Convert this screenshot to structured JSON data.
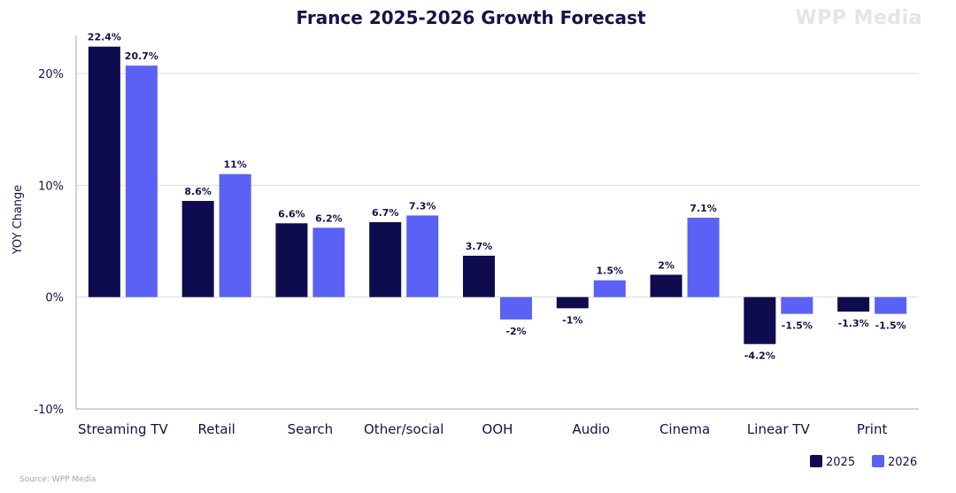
{
  "brand": {
    "watermark": "WPP Media"
  },
  "source": "Source: WPP Media",
  "colors": {
    "series2025": "#0f0b4f",
    "series2026": "#5a61f5",
    "grid": "#dcdcdc",
    "axis": "#a8a8a8",
    "text": "#14134a"
  },
  "chart_data": {
    "type": "bar",
    "title": "France 2025-2026 Growth Forecast",
    "xlabel": "",
    "ylabel": "YOY Change",
    "ylim": [
      -10,
      22.4
    ],
    "yticks": [
      -10,
      0,
      10,
      20
    ],
    "ytick_labels": [
      "-10%",
      "0%",
      "10%",
      "20%"
    ],
    "grid": true,
    "legend_position": "bottom-right",
    "categories": [
      "Streaming TV",
      "Retail",
      "Search",
      "Other/social",
      "OOH",
      "Audio",
      "Cinema",
      "Linear TV",
      "Print"
    ],
    "series": [
      {
        "name": "2025",
        "color": "#0f0b4f",
        "values": [
          22.4,
          8.6,
          6.6,
          6.7,
          3.7,
          -1,
          2,
          -4.2,
          -1.3
        ],
        "labels": [
          "22.4%",
          "8.6%",
          "6.6%",
          "6.7%",
          "3.7%",
          "-1%",
          "2%",
          "-4.2%",
          "-1.3%"
        ]
      },
      {
        "name": "2026",
        "color": "#5a61f5",
        "values": [
          20.7,
          11,
          6.2,
          7.3,
          -2,
          1.5,
          7.1,
          -1.5,
          -1.5
        ],
        "labels": [
          "20.7%",
          "11%",
          "6.2%",
          "7.3%",
          "-2%",
          "1.5%",
          "7.1%",
          "-1.5%",
          "-1.5%"
        ]
      }
    ]
  }
}
